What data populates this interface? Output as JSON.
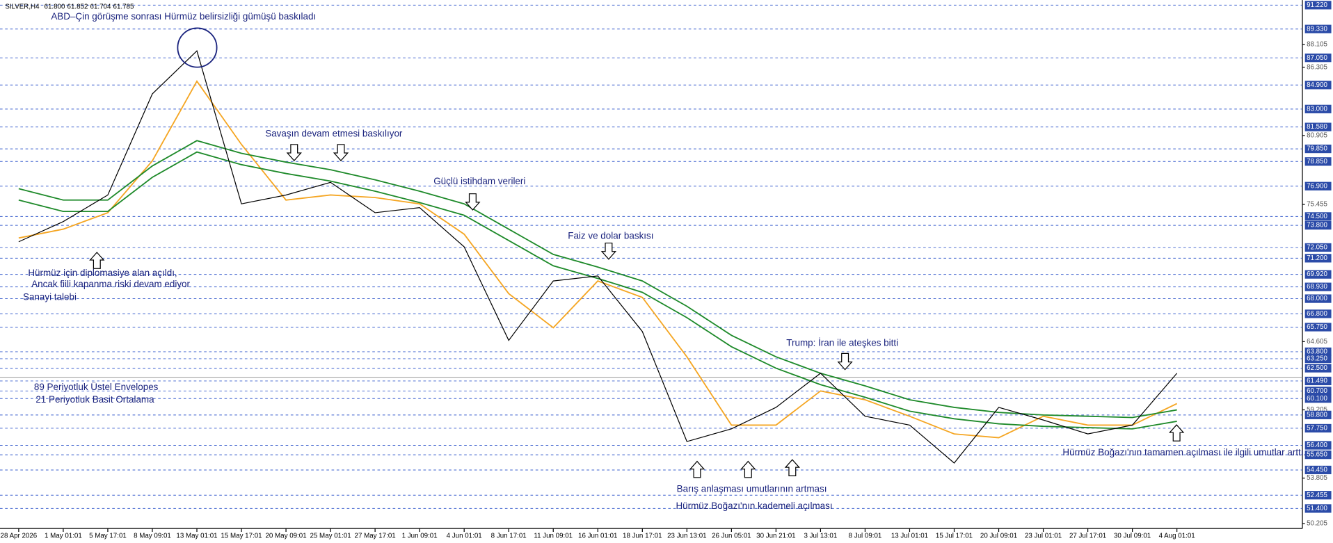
{
  "chart_data": {
    "type": "line",
    "symbol": "SILVER,H4",
    "ohlc": [
      {
        "value": 61.8,
        "label": "61.800"
      },
      {
        "value": 61.852,
        "label": "61.852"
      },
      {
        "value": 61.704,
        "label": "61.704"
      },
      {
        "value": 61.785,
        "label": "61.785"
      }
    ],
    "categories": [
      "28 Apr 2026",
      "1 May 01:01",
      "5 May 17:01",
      "8 May 09:01",
      "13 May 01:01",
      "15 May 17:01",
      "20 May 09:01",
      "25 May 01:01",
      "27 May 17:01",
      "1 Jun 09:01",
      "4 Jun 01:01",
      "8 Jun 17:01",
      "11 Jun 09:01",
      "16 Jun 01:01",
      "18 Jun 17:01",
      "23 Jun 13:01",
      "26 Jun 05:01",
      "30 Jun 21:01",
      "3 Jul 13:01",
      "8 Jul 09:01",
      "13 Jul 01:01",
      "15 Jul 17:01",
      "20 Jul 09:01",
      "23 Jul 01:01",
      "27 Jul 17:01",
      "30 Jul 09:01",
      "4 Aug 01:01"
    ],
    "price": {
      "color": "#000000",
      "values": [
        72.5,
        74.1,
        76.2,
        84.2,
        87.6,
        75.5,
        76.2,
        77.2,
        74.8,
        75.2,
        72.1,
        64.7,
        69.4,
        69.8,
        65.4,
        56.7,
        57.7,
        59.4,
        62.1,
        58.7,
        58.0,
        55.0,
        59.4,
        58.4,
        57.3,
        58.0,
        62.1
      ]
    },
    "series": [
      {
        "name": "21 Periyotluk Basit Ortalama",
        "color": "#f5a623",
        "values": [
          72.8,
          73.5,
          74.8,
          78.9,
          85.2,
          80.2,
          75.8,
          76.2,
          76.0,
          75.5,
          73.1,
          68.4,
          65.7,
          69.4,
          68.1,
          63.4,
          58.0,
          58.0,
          60.7,
          60.0,
          58.7,
          57.3,
          57.0,
          58.7,
          58.0,
          58.0,
          59.7
        ]
      },
      {
        "name": "89 Periyotluk Üstel Envelopes",
        "color": "#1e8a2a",
        "values": [
          76.7,
          75.8,
          75.8,
          78.5,
          80.5,
          79.5,
          78.8,
          78.2,
          77.4,
          76.5,
          75.5,
          73.5,
          71.5,
          70.5,
          69.4,
          67.4,
          65.1,
          63.4,
          62.1,
          61.1,
          60.0,
          59.4,
          59.0,
          58.8,
          58.7,
          58.6,
          59.2
        ],
        "lower": [
          75.8,
          74.9,
          74.9,
          77.6,
          79.6,
          78.6,
          77.9,
          77.3,
          76.5,
          75.6,
          74.6,
          72.6,
          70.6,
          69.6,
          68.5,
          66.5,
          64.2,
          62.5,
          61.2,
          60.2,
          59.1,
          58.5,
          58.1,
          57.9,
          57.8,
          57.7,
          58.3
        ]
      }
    ],
    "ylim": [
      49.82,
      91.62
    ],
    "yticks": [
      {
        "value": 91.22,
        "label": "91.220",
        "level": true
      },
      {
        "value": 89.33,
        "label": "89.330",
        "level": true
      },
      {
        "value": 88.105,
        "label": "88.105"
      },
      {
        "value": 87.05,
        "label": "87.050",
        "level": true
      },
      {
        "value": 86.305,
        "label": "86.305"
      },
      {
        "value": 84.9,
        "label": "84.900",
        "level": true
      },
      {
        "value": 83,
        "label": "83.000",
        "level": true
      },
      {
        "value": 81.58,
        "label": "81.580",
        "level": true
      },
      {
        "value": 80.905,
        "label": "80.905"
      },
      {
        "value": 79.85,
        "label": "79.850",
        "level": true
      },
      {
        "value": 78.85,
        "label": "78.850",
        "level": true
      },
      {
        "value": 76.9,
        "label": "76.900",
        "level": true
      },
      {
        "value": 75.455,
        "label": "75.455"
      },
      {
        "value": 74.5,
        "label": "74.500",
        "level": true
      },
      {
        "value": 73.8,
        "label": "73.800",
        "level": true
      },
      {
        "value": 72.05,
        "label": "72.050",
        "level": true
      },
      {
        "value": 71.2,
        "label": "71.200",
        "level": true
      },
      {
        "value": 69.92,
        "label": "69.920",
        "level": true
      },
      {
        "value": 68.93,
        "label": "68.930",
        "level": true
      },
      {
        "value": 68,
        "label": "68.000",
        "level": true
      },
      {
        "value": 66.8,
        "label": "66.800",
        "level": true
      },
      {
        "value": 65.75,
        "label": "65.750",
        "level": true
      },
      {
        "value": 64.605,
        "label": "64.605"
      },
      {
        "value": 63.8,
        "label": "63.800",
        "level": true
      },
      {
        "value": 63.25,
        "label": "63.250",
        "level": true
      },
      {
        "value": 62.5,
        "label": "62.500",
        "level": true
      },
      {
        "value": 61.49,
        "label": "61.490",
        "level": true
      },
      {
        "value": 60.7,
        "label": "60.700",
        "level": true
      },
      {
        "value": 60.1,
        "label": "60.100",
        "level": true
      },
      {
        "value": 59.205,
        "label": "59.205"
      },
      {
        "value": 58.8,
        "label": "58.800",
        "level": true
      },
      {
        "value": 57.75,
        "label": "57.750",
        "level": true
      },
      {
        "value": 56.4,
        "label": "56.400",
        "level": true
      },
      {
        "value": 55.65,
        "label": "55.650",
        "level": true
      },
      {
        "value": 54.45,
        "label": "54.450",
        "level": true
      },
      {
        "value": 53.805,
        "label": "53.805"
      },
      {
        "value": 52.455,
        "label": "52.455",
        "level": true
      },
      {
        "value": 51.4,
        "label": "51.400",
        "level": true
      },
      {
        "value": 50.205,
        "label": "50.205"
      }
    ],
    "annotations": [
      "ABD–Çin görüşme sonrası Hürmüz belirsizliği gümüşü baskıladı",
      "Savaşın devam etmesi baskılıyor",
      "Güçlü istihdam verileri",
      "Faiz ve dolar baskısı",
      "Hürmüz için diplomasiye alan açıldı,",
      "Ancak fiili kapanma riski devam ediyor",
      "Sanayi talebi",
      "Trump: İran ile ateşkes bitti",
      "Hürmüz Boğazı'nın tamamen açılması ile ilgili umutlar arttı.",
      "Barış anlaşması umutlarının artması",
      "Hürmüz Boğazı'nın kademeli açılması"
    ]
  }
}
